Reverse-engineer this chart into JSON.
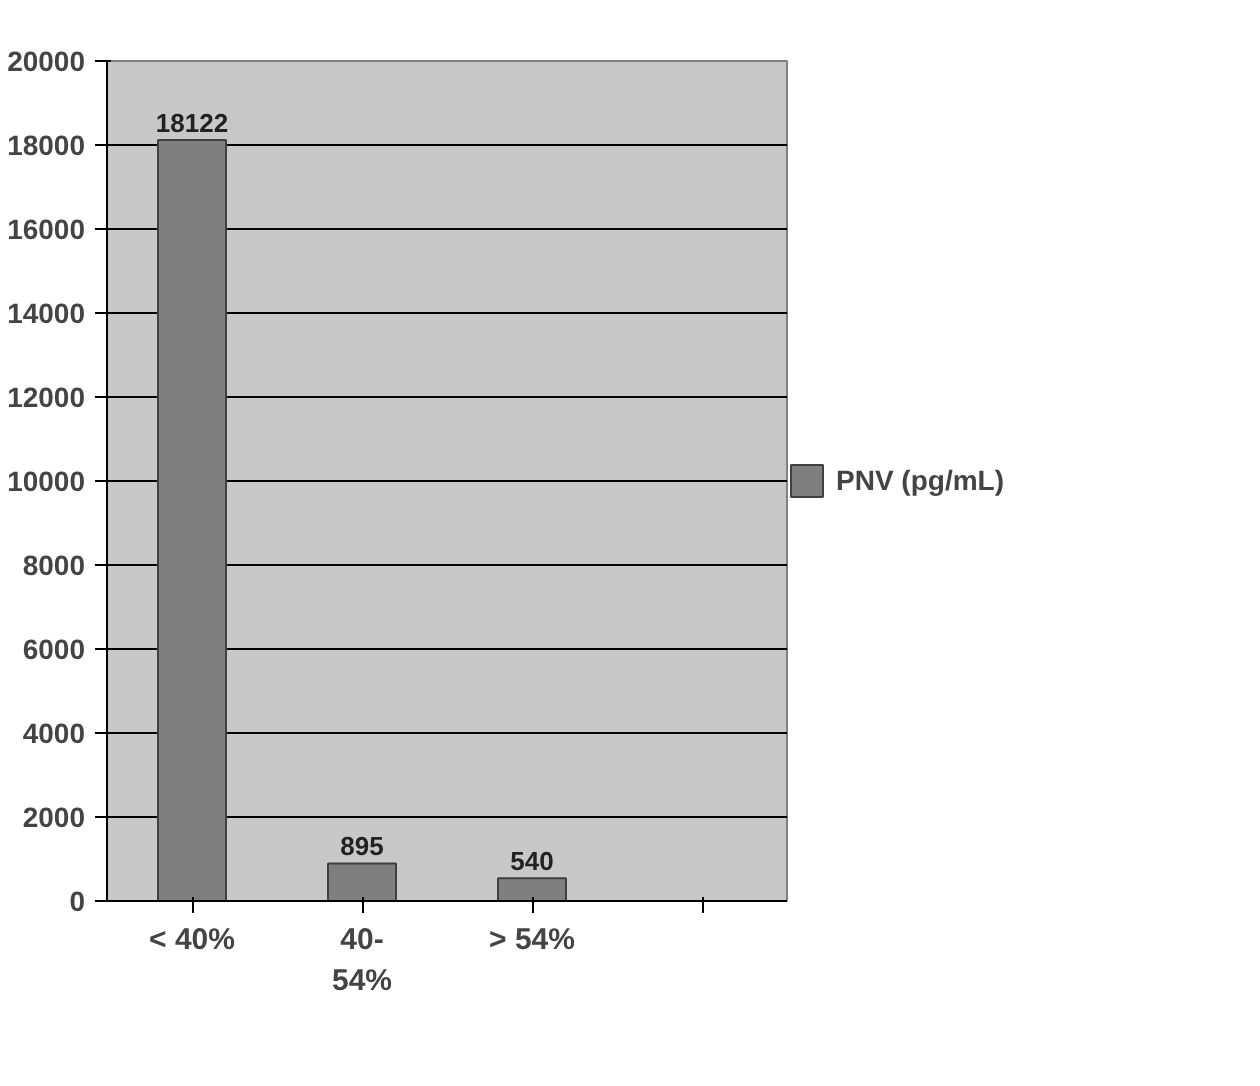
{
  "chart_data": {
    "type": "bar",
    "categories": [
      "< 40%",
      "40-54%",
      "> 54%",
      null
    ],
    "series": [
      {
        "name": "PNV (pg/mL)",
        "color": "#7f7f7f",
        "values": [
          18122,
          895,
          540,
          null
        ]
      }
    ],
    "ylim": [
      0,
      20000
    ],
    "yticks": [
      0,
      2000,
      4000,
      6000,
      8000,
      10000,
      12000,
      14000,
      16000,
      18000,
      20000
    ],
    "grid": "y",
    "legend": "right",
    "data_labels": true
  }
}
